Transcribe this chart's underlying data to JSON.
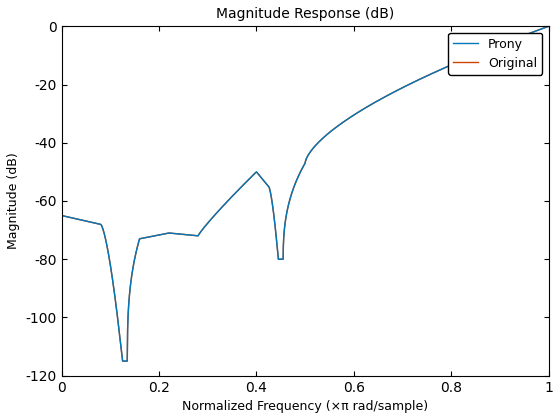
{
  "title": "Magnitude Response (dB)",
  "xlabel": "Normalized Frequency (×π rad/sample)",
  "ylabel": "Magnitude (dB)",
  "xlim": [
    0,
    1
  ],
  "ylim": [
    -120,
    0
  ],
  "yticks": [
    0,
    -20,
    -40,
    -60,
    -80,
    -100,
    -120
  ],
  "xticks": [
    0,
    0.2,
    0.4,
    0.6,
    0.8,
    1.0
  ],
  "prony_color": "#0077BB",
  "original_color": "#CC4400",
  "legend_labels": [
    "Prony",
    "Original"
  ],
  "figsize": [
    5.6,
    4.2
  ],
  "dpi": 100,
  "bg_color": "#FFFFFF",
  "linewidth": 1.0
}
